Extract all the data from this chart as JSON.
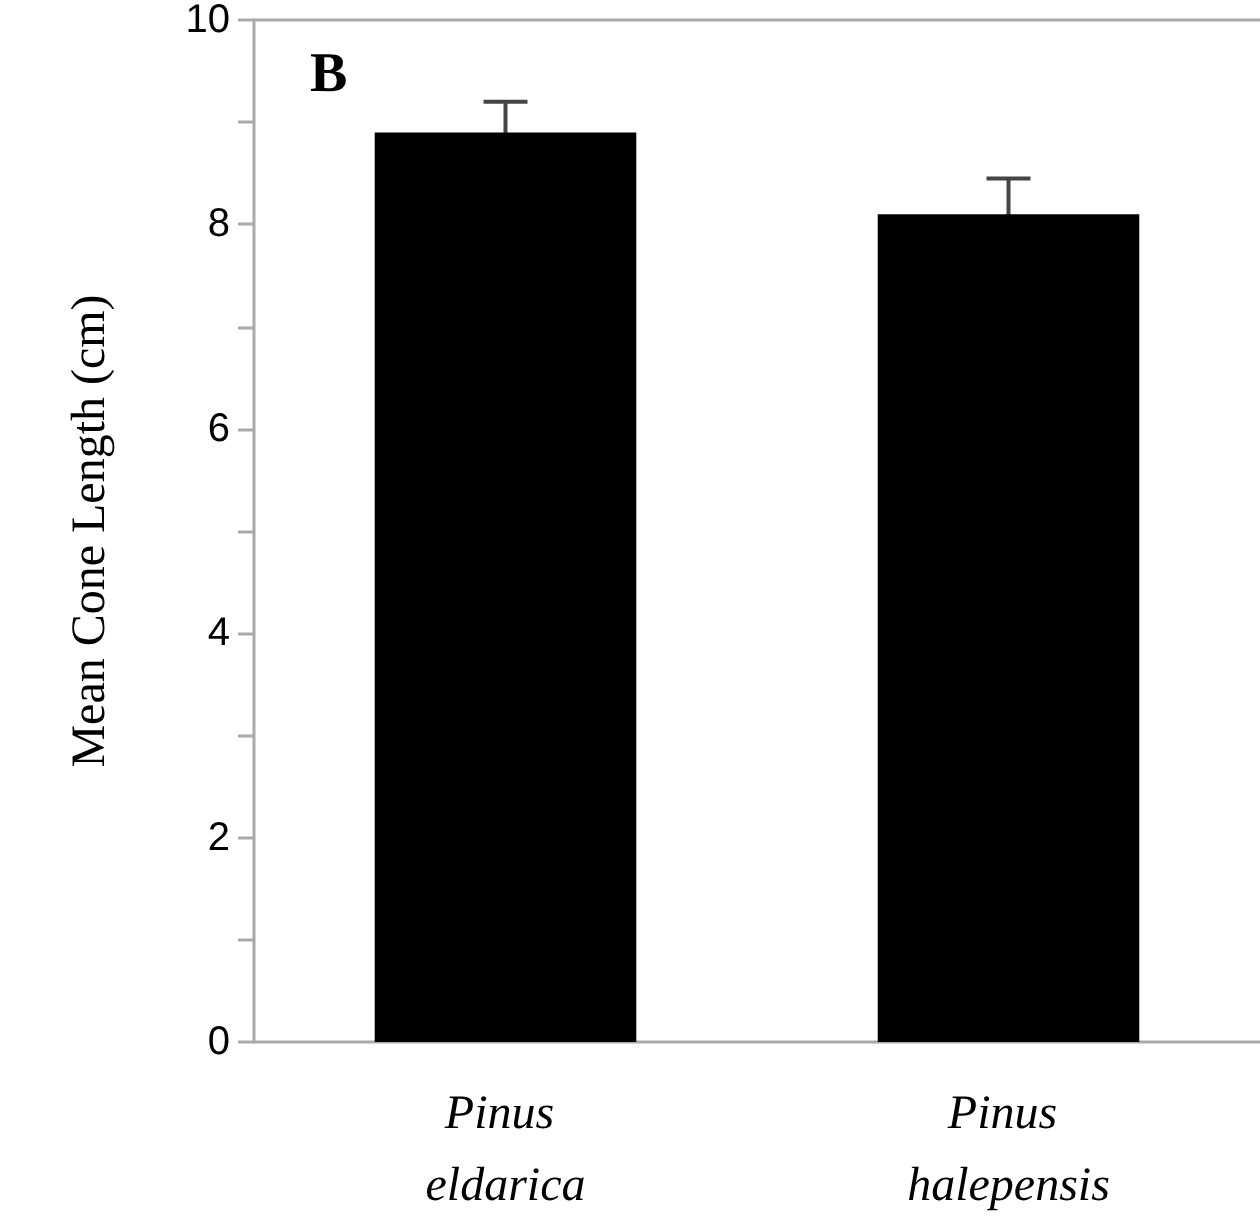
{
  "chart_data": {
    "type": "bar",
    "title": "B",
    "ylabel": "Mean Cone Length (cm)",
    "categories": [
      "Pinus eldarica",
      "Pinus halepensis"
    ],
    "values": [
      8.9,
      8.1
    ],
    "errors": [
      0.3,
      0.35
    ],
    "color": "#000000",
    "ylim": [
      0,
      10
    ],
    "yticks": [
      0,
      {
        "value": 1,
        "label": null
      },
      2,
      {
        "value": 3,
        "label": null
      },
      4,
      {
        "value": 5,
        "label": null
      },
      6,
      {
        "value": 7,
        "label": null
      },
      8,
      {
        "value": 9,
        "label": null
      },
      10
    ],
    "grid": false
  }
}
